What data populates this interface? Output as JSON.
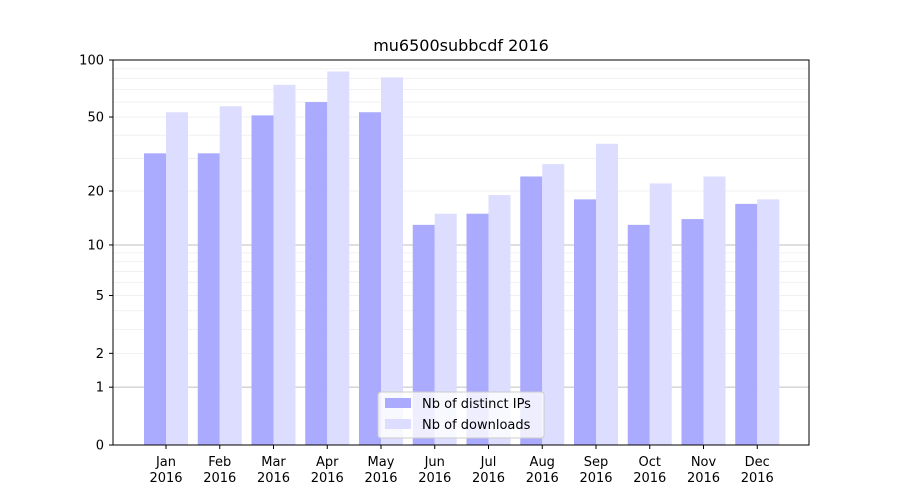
{
  "chart_data": {
    "type": "bar",
    "title": "mu6500subbcdf 2016",
    "xlabel": "",
    "ylabel": "",
    "yscale": "symlog",
    "ylim": [
      0,
      100
    ],
    "yticks": [
      0,
      1,
      2,
      5,
      10,
      20,
      50,
      100
    ],
    "ytick_labels": [
      "0",
      "1",
      "2",
      "5",
      "10",
      "20",
      "50",
      "100"
    ],
    "categories": [
      "Jan\n2016",
      "Feb\n2016",
      "Mar\n2016",
      "Apr\n2016",
      "May\n2016",
      "Jun\n2016",
      "Jul\n2016",
      "Aug\n2016",
      "Sep\n2016",
      "Oct\n2016",
      "Nov\n2016",
      "Dec\n2016"
    ],
    "category_lines": [
      [
        "Jan",
        "2016"
      ],
      [
        "Feb",
        "2016"
      ],
      [
        "Mar",
        "2016"
      ],
      [
        "Apr",
        "2016"
      ],
      [
        "May",
        "2016"
      ],
      [
        "Jun",
        "2016"
      ],
      [
        "Jul",
        "2016"
      ],
      [
        "Aug",
        "2016"
      ],
      [
        "Sep",
        "2016"
      ],
      [
        "Oct",
        "2016"
      ],
      [
        "Nov",
        "2016"
      ],
      [
        "Dec",
        "2016"
      ]
    ],
    "series": [
      {
        "name": "Nb of distinct IPs",
        "color": "#aaaaff",
        "values": [
          32,
          32,
          51,
          60,
          53,
          13,
          15,
          24,
          18,
          13,
          14,
          17
        ]
      },
      {
        "name": "Nb of downloads",
        "color": "#ddddff",
        "values": [
          53,
          57,
          74,
          87,
          81,
          15,
          19,
          28,
          36,
          22,
          24,
          18
        ]
      }
    ],
    "grid": true,
    "legend_position": "bottom-center"
  }
}
